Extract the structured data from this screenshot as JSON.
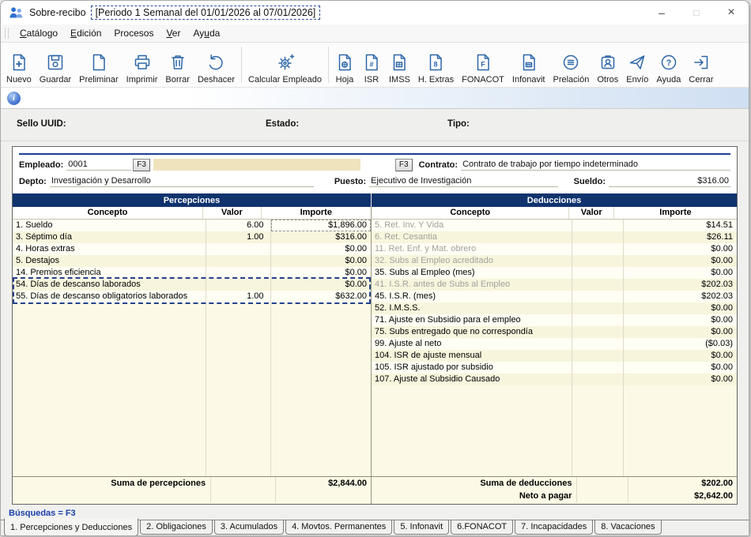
{
  "window": {
    "app_title": "Sobre-recibo",
    "period_title": "[Periodo 1 Semanal del 01/01/2026 al 07/01/2026]",
    "controls": {
      "minimize": "–",
      "maximize": "□",
      "close": "×"
    }
  },
  "menu": {
    "items": [
      {
        "label": "Catálogo",
        "accel": 0
      },
      {
        "label": "Edición",
        "accel": 0
      },
      {
        "label": "Procesos",
        "accel": -1
      },
      {
        "label": "Ver",
        "accel": 0
      },
      {
        "label": "Ayuda",
        "accel": 2
      }
    ]
  },
  "toolbar": {
    "buttons": [
      {
        "label": "Nuevo",
        "icon": "new-document-icon"
      },
      {
        "label": "Guardar",
        "icon": "save-icon"
      },
      {
        "label": "Preliminar",
        "icon": "preview-document-icon"
      },
      {
        "label": "Imprimir",
        "icon": "printer-icon"
      },
      {
        "label": "Borrar",
        "icon": "trash-icon"
      },
      {
        "label": "Deshacer",
        "icon": "undo-icon",
        "sep_after": true
      },
      {
        "label": "Calcular Empleado",
        "icon": "calculate-gear-icon",
        "sep_after": true
      },
      {
        "label": "Hoja",
        "icon": "sheet-document-icon"
      },
      {
        "label": "ISR",
        "icon": "isr-document-icon"
      },
      {
        "label": "IMSS",
        "icon": "imss-document-icon"
      },
      {
        "label": "H. Extras",
        "icon": "hextras-document-icon"
      },
      {
        "label": "FONACOT",
        "icon": "fonacot-document-icon"
      },
      {
        "label": "Infonavit",
        "icon": "infonavit-document-icon"
      },
      {
        "label": "Prelación",
        "icon": "prelacion-list-icon"
      },
      {
        "label": "Otros",
        "icon": "otros-badge-icon"
      },
      {
        "label": "Envío",
        "icon": "send-plane-icon"
      },
      {
        "label": "Ayuda",
        "icon": "help-icon"
      },
      {
        "label": "Cerrar",
        "icon": "exit-icon"
      }
    ]
  },
  "status_fields": {
    "sello_label": "Sello UUID:",
    "estado_label": "Estado:",
    "tipo_label": "Tipo:"
  },
  "employee": {
    "empleado_label": "Empleado:",
    "empleado_value": "0001",
    "f3_button": "F3",
    "contrato_label": "Contrato:",
    "contrato_value": "Contrato de trabajo por tiempo indeterminado",
    "depto_label": "Depto:",
    "depto_value": "Investigación y Desarrollo",
    "puesto_label": "Puesto:",
    "puesto_value": "Ejecutivo de Investigación",
    "sueldo_label": "Sueldo:",
    "sueldo_value": "$316.00"
  },
  "percepciones": {
    "title": "Percepciones",
    "columns": [
      "Concepto",
      "Valor",
      "Importe"
    ],
    "rows": [
      {
        "concepto": "1. Sueldo",
        "valor": "6.00",
        "importe": "$1,896.00",
        "focus": true
      },
      {
        "concepto": "3. Séptimo día",
        "valor": "1.00",
        "importe": "$316.00"
      },
      {
        "concepto": "4. Horas extras",
        "valor": "",
        "importe": "$0.00"
      },
      {
        "concepto": "5. Destajos",
        "valor": "",
        "importe": "$0.00"
      },
      {
        "concepto": "14. Premios eficiencia",
        "valor": "",
        "importe": "$0.00"
      },
      {
        "concepto": "54. Días de descanso laborados",
        "valor": "",
        "importe": "$0.00",
        "annot": true
      },
      {
        "concepto": "55. Días de descanso obligatorios laborados",
        "valor": "1.00",
        "importe": "$632.00",
        "annot": true
      }
    ],
    "total_label": "Suma de percepciones",
    "total_value": "$2,844.00"
  },
  "deducciones": {
    "title": "Deducciones",
    "columns": [
      "Concepto",
      "Valor",
      "Importe"
    ],
    "rows": [
      {
        "concepto": "5. Ret. Inv. Y Vida",
        "valor": "",
        "importe": "$14.51",
        "gray": true
      },
      {
        "concepto": "6. Ret. Cesantia",
        "valor": "",
        "importe": "$26.11",
        "gray": true
      },
      {
        "concepto": "11. Ret. Enf. y Mat. obrero",
        "valor": "",
        "importe": "$0.00",
        "gray": true
      },
      {
        "concepto": "32. Subs al Empleo acreditado",
        "valor": "",
        "importe": "$0.00",
        "gray": true
      },
      {
        "concepto": "35. Subs al Empleo (mes)",
        "valor": "",
        "importe": "$0.00"
      },
      {
        "concepto": "41. I.S.R. antes de Subs al Empleo",
        "valor": "",
        "importe": "$202.03",
        "gray": true
      },
      {
        "concepto": "45. I.S.R. (mes)",
        "valor": "",
        "importe": "$202.03"
      },
      {
        "concepto": "52. I.M.S.S.",
        "valor": "",
        "importe": "$0.00"
      },
      {
        "concepto": "71. Ajuste en Subsidio para el empleo",
        "valor": "",
        "importe": "$0.00"
      },
      {
        "concepto": "75. Subs entregado que no correspondía",
        "valor": "",
        "importe": "$0.00"
      },
      {
        "concepto": "99. Ajuste al neto",
        "valor": "",
        "importe": "($0.03)"
      },
      {
        "concepto": "104. ISR de ajuste mensual",
        "valor": "",
        "importe": "$0.00"
      },
      {
        "concepto": "105. ISR ajustado por subsidio",
        "valor": "",
        "importe": "$0.00"
      },
      {
        "concepto": "107. Ajuste al Subsidio Causado",
        "valor": "",
        "importe": "$0.00"
      }
    ],
    "total_label": "Suma de deducciones",
    "total_value": "$202.00",
    "neto_label": "Neto a pagar",
    "neto_value": "$2,642.00"
  },
  "statusbar": {
    "hint": "Búsquedas = F3"
  },
  "tabs": {
    "active": 0,
    "items": [
      "1. Percepciones y Deducciones",
      "2. Obligaciones",
      "3. Acumulados",
      "4. Movtos. Permanentes",
      "5. Infonavit",
      "6.FONACOT",
      "7. Incapacidades",
      "8. Vacaciones"
    ]
  },
  "colors": {
    "header_navy": "#10336e",
    "icon_blue": "#2c66a8",
    "annotation_blue": "#24418c",
    "row_cream": "#f7f5dc",
    "row_light": "#fffef4",
    "name_field_beige": "#efe3bd"
  }
}
